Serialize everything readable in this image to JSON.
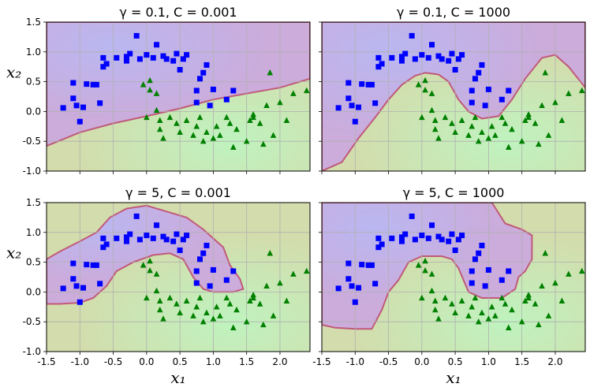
{
  "chart_data": [
    {
      "type": "scatter",
      "title": "γ = 0.1, C = 0.001",
      "xlabel": "",
      "ylabel": "x₂",
      "xlim": [
        -1.5,
        2.45
      ],
      "ylim": [
        -1.0,
        1.5
      ],
      "grid": true,
      "series": [
        {
          "marker": "square",
          "color": "#0000ff",
          "points": [
            [
              -1.25,
              0.06
            ],
            [
              -1.1,
              0.48
            ],
            [
              -1.1,
              0.22
            ],
            [
              -1.05,
              0.1
            ],
            [
              -1.0,
              -0.17
            ],
            [
              -0.95,
              0.07
            ],
            [
              -0.9,
              0.46
            ],
            [
              -0.8,
              0.45
            ],
            [
              -0.75,
              0.45
            ],
            [
              -0.7,
              0.14
            ],
            [
              -0.65,
              0.75
            ],
            [
              -0.6,
              0.8
            ],
            [
              -0.65,
              0.9
            ],
            [
              -0.45,
              0.9
            ],
            [
              -0.3,
              0.92
            ],
            [
              -0.3,
              0.85
            ],
            [
              -0.25,
              0.97
            ],
            [
              -0.15,
              1.27
            ],
            [
              -0.1,
              0.88
            ],
            [
              0.0,
              0.95
            ],
            [
              0.1,
              0.9
            ],
            [
              0.15,
              1.12
            ],
            [
              0.25,
              0.93
            ],
            [
              0.3,
              0.88
            ],
            [
              0.4,
              0.85
            ],
            [
              0.45,
              0.97
            ],
            [
              0.5,
              0.7
            ],
            [
              0.55,
              0.88
            ],
            [
              0.6,
              0.95
            ],
            [
              0.75,
              0.35
            ],
            [
              0.8,
              0.55
            ],
            [
              0.85,
              0.65
            ],
            [
              0.9,
              0.78
            ],
            [
              0.95,
              0.1
            ],
            [
              1.0,
              0.37
            ],
            [
              1.2,
              0.2
            ],
            [
              1.3,
              0.35
            ],
            [
              0.75,
              0.15
            ]
          ]
        },
        {
          "marker": "triangle",
          "color": "#008000",
          "points": [
            [
              -0.05,
              0.45
            ],
            [
              0.05,
              0.52
            ],
            [
              0.05,
              0.36
            ],
            [
              0.15,
              0.3
            ],
            [
              0.0,
              -0.1
            ],
            [
              0.15,
              0.02
            ],
            [
              0.2,
              -0.15
            ],
            [
              0.2,
              -0.3
            ],
            [
              0.25,
              -0.45
            ],
            [
              0.35,
              -0.1
            ],
            [
              0.45,
              -0.2
            ],
            [
              0.5,
              -0.35
            ],
            [
              0.6,
              -0.15
            ],
            [
              0.7,
              -0.4
            ],
            [
              0.75,
              -0.25
            ],
            [
              0.8,
              -0.1
            ],
            [
              0.85,
              -0.5
            ],
            [
              0.9,
              -0.35
            ],
            [
              1.0,
              -0.45
            ],
            [
              1.05,
              -0.25
            ],
            [
              1.1,
              -0.4
            ],
            [
              1.2,
              -0.1
            ],
            [
              1.25,
              -0.2
            ],
            [
              1.3,
              -0.6
            ],
            [
              1.35,
              -0.3
            ],
            [
              1.5,
              -0.5
            ],
            [
              1.55,
              -0.15
            ],
            [
              1.6,
              -0.05
            ],
            [
              1.7,
              -0.2
            ],
            [
              1.75,
              -0.55
            ],
            [
              1.8,
              0.1
            ],
            [
              1.9,
              -0.4
            ],
            [
              2.0,
              0.15
            ],
            [
              2.1,
              -0.15
            ],
            [
              2.2,
              0.3
            ],
            [
              2.4,
              0.35
            ],
            [
              1.85,
              0.65
            ],
            [
              1.6,
              -0.1
            ]
          ]
        }
      ]
    },
    {
      "type": "scatter",
      "title": "γ = 0.1, C = 1000",
      "xlabel": "",
      "ylabel": "",
      "xlim": [
        -1.5,
        2.45
      ],
      "ylim": [
        -1.0,
        1.5
      ],
      "grid": true,
      "series": [
        {
          "marker": "square",
          "color": "#0000ff",
          "ref": 0
        },
        {
          "marker": "triangle",
          "color": "#008000",
          "ref": 1
        }
      ]
    },
    {
      "type": "scatter",
      "title": "γ = 5, C = 0.001",
      "xlabel": "x₁",
      "ylabel": "x₂",
      "xlim": [
        -1.5,
        2.45
      ],
      "ylim": [
        -1.0,
        1.5
      ],
      "grid": true,
      "series": [
        {
          "marker": "square",
          "color": "#0000ff",
          "ref": 0
        },
        {
          "marker": "triangle",
          "color": "#008000",
          "ref": 1
        }
      ]
    },
    {
      "type": "scatter",
      "title": "γ = 5, C = 1000",
      "xlabel": "x₁",
      "ylabel": "",
      "xlim": [
        -1.5,
        2.45
      ],
      "ylim": [
        -1.0,
        1.5
      ],
      "grid": true,
      "series": [
        {
          "marker": "square",
          "color": "#0000ff",
          "ref": 0
        },
        {
          "marker": "triangle",
          "color": "#008000",
          "ref": 1
        }
      ]
    }
  ],
  "x_ticks": [
    "-1.5",
    "-1.0",
    "-0.5",
    "0.0",
    "0.5",
    "1.0",
    "1.5",
    "2.0"
  ],
  "y_ticks": [
    "1.5",
    "1.0",
    "0.5",
    "0.0",
    "-0.5",
    "-1.0"
  ],
  "colors": {
    "class_a_region": "#c7a8e0",
    "class_b_region": "#d4dca8",
    "boundary": "#c05a7a",
    "class_a_points": "#0000ff",
    "class_b_points": "#008000"
  }
}
